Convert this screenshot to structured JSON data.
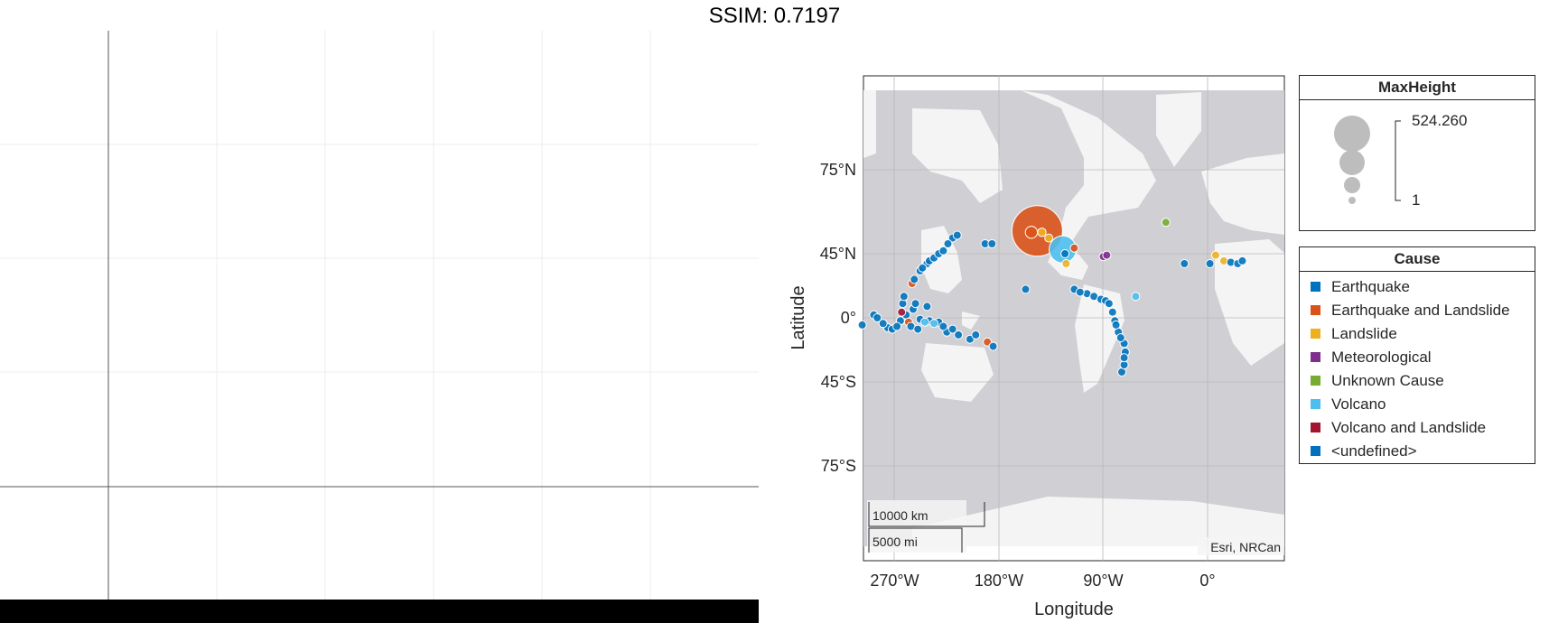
{
  "header": {
    "title": "SSIM: 0.7197"
  },
  "map": {
    "attribution": "Esri, NRCan",
    "scalebar": {
      "km_label": "10000 km",
      "mi_label": "5000 mi"
    },
    "land_color": "#f4f4f4",
    "ocean_color": "#d0d0d4"
  },
  "chart_data": {
    "type": "scatter",
    "title": "",
    "xlabel": "Longitude",
    "ylabel": "Latitude",
    "xticks": [
      "270°W",
      "180°W",
      "90°W",
      "0°"
    ],
    "yticks": [
      "75°N",
      "45°N",
      "0°",
      "45°S",
      "75°S"
    ],
    "size_variable": "MaxHeight",
    "size_range": {
      "max": "524.260",
      "min": "1"
    },
    "color_variable": "Cause",
    "categories": [
      {
        "name": "Earthquake",
        "color": "#0072bd"
      },
      {
        "name": "Earthquake and Landslide",
        "color": "#d95319"
      },
      {
        "name": "Landslide",
        "color": "#edb120"
      },
      {
        "name": "Meteorological",
        "color": "#7e2f8e"
      },
      {
        "name": "Unknown Cause",
        "color": "#77ac30"
      },
      {
        "name": "Volcano",
        "color": "#4dbeee"
      },
      {
        "name": "Volcano and Landslide",
        "color": "#a2142f"
      },
      {
        "name": "<undefined>",
        "color": "#0072bd"
      }
    ],
    "points": [
      {
        "lon": -298,
        "lat": -5,
        "cause": 0,
        "h": 3
      },
      {
        "lon": -288,
        "lat": 2,
        "cause": 0,
        "h": 5
      },
      {
        "lon": -285,
        "lat": 0,
        "cause": 0,
        "h": 4
      },
      {
        "lon": -280,
        "lat": -4,
        "cause": 0,
        "h": 3
      },
      {
        "lon": -276,
        "lat": -7,
        "cause": 0,
        "h": 6
      },
      {
        "lon": -272,
        "lat": -8,
        "cause": 0,
        "h": 5
      },
      {
        "lon": -268,
        "lat": -6,
        "cause": 0,
        "h": 4
      },
      {
        "lon": -265,
        "lat": -2,
        "cause": 0,
        "h": 6
      },
      {
        "lon": -264,
        "lat": 4,
        "cause": 6,
        "h": 3
      },
      {
        "lon": -263,
        "lat": 10,
        "cause": 0,
        "h": 4
      },
      {
        "lon": -262,
        "lat": 15,
        "cause": 0,
        "h": 4
      },
      {
        "lon": -260,
        "lat": 2,
        "cause": 0,
        "h": 5
      },
      {
        "lon": -258,
        "lat": -3,
        "cause": 1,
        "h": 3
      },
      {
        "lon": -256,
        "lat": -6,
        "cause": 0,
        "h": 3
      },
      {
        "lon": -254,
        "lat": 6,
        "cause": 0,
        "h": 4
      },
      {
        "lon": -252,
        "lat": 10,
        "cause": 0,
        "h": 3
      },
      {
        "lon": -250,
        "lat": -8,
        "cause": 0,
        "h": 3
      },
      {
        "lon": -248,
        "lat": -1,
        "cause": 0,
        "h": 4
      },
      {
        "lon": -244,
        "lat": -3,
        "cause": 5,
        "h": 3
      },
      {
        "lon": -240,
        "lat": -2,
        "cause": 0,
        "h": 4
      },
      {
        "lon": -236,
        "lat": -4,
        "cause": 5,
        "h": 3
      },
      {
        "lon": -232,
        "lat": -3,
        "cause": 0,
        "h": 4
      },
      {
        "lon": -228,
        "lat": -6,
        "cause": 0,
        "h": 3
      },
      {
        "lon": -225,
        "lat": -10,
        "cause": 0,
        "h": 4
      },
      {
        "lon": -220,
        "lat": -8,
        "cause": 0,
        "h": 3
      },
      {
        "lon": -215,
        "lat": -12,
        "cause": 0,
        "h": 3
      },
      {
        "lon": -205,
        "lat": -15,
        "cause": 0,
        "h": 3
      },
      {
        "lon": -200,
        "lat": -12,
        "cause": 0,
        "h": 3
      },
      {
        "lon": -190,
        "lat": -17,
        "cause": 1,
        "h": 4
      },
      {
        "lon": -185,
        "lat": -20,
        "cause": 0,
        "h": 3
      },
      {
        "lon": -242,
        "lat": 8,
        "cause": 0,
        "h": 3
      },
      {
        "lon": -255,
        "lat": 24,
        "cause": 1,
        "h": 3
      },
      {
        "lon": -253,
        "lat": 27,
        "cause": 0,
        "h": 3
      },
      {
        "lon": -248,
        "lat": 33,
        "cause": 0,
        "h": 4
      },
      {
        "lon": -246,
        "lat": 35,
        "cause": 0,
        "h": 3
      },
      {
        "lon": -242,
        "lat": 38,
        "cause": 0,
        "h": 4
      },
      {
        "lon": -240,
        "lat": 40,
        "cause": 0,
        "h": 3
      },
      {
        "lon": -236,
        "lat": 42,
        "cause": 0,
        "h": 3
      },
      {
        "lon": -232,
        "lat": 45,
        "cause": 0,
        "h": 3
      },
      {
        "lon": -228,
        "lat": 47,
        "cause": 0,
        "h": 3
      },
      {
        "lon": -224,
        "lat": 52,
        "cause": 0,
        "h": 4
      },
      {
        "lon": -220,
        "lat": 56,
        "cause": 0,
        "h": 5
      },
      {
        "lon": -216,
        "lat": 58,
        "cause": 0,
        "h": 4
      },
      {
        "lon": -192,
        "lat": 52,
        "cause": 0,
        "h": 4
      },
      {
        "lon": -186,
        "lat": 52,
        "cause": 0,
        "h": 4
      },
      {
        "lon": -157,
        "lat": 20,
        "cause": 0,
        "h": 5
      },
      {
        "lon": -147,
        "lat": 61,
        "cause": 1,
        "h": 524
      },
      {
        "lon": -152,
        "lat": 60,
        "cause": 1,
        "h": 30
      },
      {
        "lon": -143,
        "lat": 60,
        "cause": 2,
        "h": 15
      },
      {
        "lon": -137,
        "lat": 56,
        "cause": 2,
        "h": 12
      },
      {
        "lon": -125,
        "lat": 48,
        "cause": 5,
        "h": 150
      },
      {
        "lon": -123,
        "lat": 45,
        "cause": 0,
        "h": 5
      },
      {
        "lon": -122,
        "lat": 38,
        "cause": 2,
        "h": 10
      },
      {
        "lon": -115,
        "lat": 49,
        "cause": 1,
        "h": 5
      },
      {
        "lon": -90,
        "lat": 43,
        "cause": 3,
        "h": 5
      },
      {
        "lon": -87,
        "lat": 44,
        "cause": 3,
        "h": 4
      },
      {
        "lon": -115,
        "lat": 20,
        "cause": 0,
        "h": 4
      },
      {
        "lon": -110,
        "lat": 18,
        "cause": 0,
        "h": 4
      },
      {
        "lon": -104,
        "lat": 17,
        "cause": 0,
        "h": 5
      },
      {
        "lon": -98,
        "lat": 15,
        "cause": 0,
        "h": 4
      },
      {
        "lon": -92,
        "lat": 13,
        "cause": 0,
        "h": 4
      },
      {
        "lon": -88,
        "lat": 12,
        "cause": 0,
        "h": 4
      },
      {
        "lon": -85,
        "lat": 10,
        "cause": 0,
        "h": 3
      },
      {
        "lon": -82,
        "lat": 4,
        "cause": 0,
        "h": 4
      },
      {
        "lon": -80,
        "lat": -2,
        "cause": 0,
        "h": 4
      },
      {
        "lon": -79,
        "lat": -5,
        "cause": 0,
        "h": 3
      },
      {
        "lon": -77,
        "lat": -10,
        "cause": 0,
        "h": 4
      },
      {
        "lon": -75,
        "lat": -14,
        "cause": 0,
        "h": 3
      },
      {
        "lon": -72,
        "lat": -18,
        "cause": 0,
        "h": 4
      },
      {
        "lon": -71,
        "lat": -24,
        "cause": 0,
        "h": 4
      },
      {
        "lon": -72,
        "lat": -28,
        "cause": 0,
        "h": 3
      },
      {
        "lon": -72,
        "lat": -33,
        "cause": 0,
        "h": 4
      },
      {
        "lon": -74,
        "lat": -38,
        "cause": 0,
        "h": 5
      },
      {
        "lon": -62,
        "lat": 15,
        "cause": 5,
        "h": 5
      },
      {
        "lon": -36,
        "lat": 67,
        "cause": 4,
        "h": 8
      },
      {
        "lon": -20,
        "lat": 38,
        "cause": 0,
        "h": 4
      },
      {
        "lon": 2,
        "lat": 38,
        "cause": 0,
        "h": 4
      },
      {
        "lon": 7,
        "lat": 44,
        "cause": 2,
        "h": 6
      },
      {
        "lon": 14,
        "lat": 40,
        "cause": 2,
        "h": 5
      },
      {
        "lon": 20,
        "lat": 39,
        "cause": 0,
        "h": 4
      },
      {
        "lon": 26,
        "lat": 38,
        "cause": 0,
        "h": 4
      },
      {
        "lon": 30,
        "lat": 40,
        "cause": 0,
        "h": 4
      }
    ]
  }
}
